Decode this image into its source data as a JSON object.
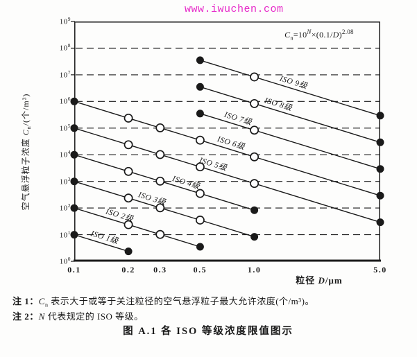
{
  "watermark": {
    "text": "www.iwuchen.com",
    "color": "#e628c8"
  },
  "colors": {
    "ink": "#1a1a1a",
    "paper": "#fdfdfc",
    "open_marker_fill": "#ffffff"
  },
  "caption": "图 A.1  各 ISO 等级浓度限值图示",
  "notes": {
    "note1": {
      "prefix": "注 1：",
      "c": "C",
      "c_sub": "n",
      "text": " 表示大于或等于关注粒径的空气悬浮粒子最大允许浓度(个/m³)。"
    },
    "note2": {
      "prefix": "注 2：",
      "n": "N",
      "text": " 代表规定的 ISO 等级。"
    }
  },
  "chart_data": {
    "type": "line",
    "title": "",
    "x_scale": "log",
    "y_scale": "log",
    "xlim": [
      0.1,
      5.0
    ],
    "ylim": [
      1,
      1000000000
    ],
    "grid": "horizontal dashed lines at each decade",
    "legend_position": "labels along lines",
    "x_ticks": [
      "0.1",
      "0.2",
      "0.3",
      "0.5",
      "1.0",
      "5.0"
    ],
    "y_tick_exponents": [
      0,
      1,
      2,
      3,
      4,
      5,
      6,
      7,
      8,
      9
    ],
    "y_tick_base": "10",
    "xlabel": "粒径 D/μm",
    "ylabel": "空气悬浮粒子浓度 Cn/(个/m³)",
    "xlabel_parts": {
      "prefix": "粒径 ",
      "d": "D",
      "suffix": "/μm"
    },
    "ylabel_parts": {
      "prefix": "空气悬浮粒子浓度 ",
      "c": "C",
      "c_sub": "n",
      "suffix": "/(个/m³)"
    },
    "annotation": {
      "c": "C",
      "c_sub": "n",
      "mid1": "=10",
      "n_sup": "N",
      "mid2": "×(0.1/",
      "d": "D",
      "mid3": ")",
      "exp_sup": "2.08"
    },
    "series": [
      {
        "name": "ISO 1级",
        "label_x": 0.146,
        "points": [
          {
            "x": 0.1,
            "y": 10,
            "marker": "filled"
          },
          {
            "x": 0.2,
            "y": 2.37,
            "marker": "filled"
          }
        ]
      },
      {
        "name": "ISO 2级",
        "label_x": 0.177,
        "points": [
          {
            "x": 0.1,
            "y": 100,
            "marker": "filled"
          },
          {
            "x": 0.2,
            "y": 23.7,
            "marker": "open"
          },
          {
            "x": 0.3,
            "y": 10.2,
            "marker": "open"
          },
          {
            "x": 0.5,
            "y": 3.52,
            "marker": "filled"
          }
        ]
      },
      {
        "name": "ISO 3级",
        "label_x": 0.268,
        "points": [
          {
            "x": 0.1,
            "y": 1000,
            "marker": "filled"
          },
          {
            "x": 0.2,
            "y": 237,
            "marker": "open"
          },
          {
            "x": 0.3,
            "y": 102,
            "marker": "open"
          },
          {
            "x": 0.5,
            "y": 35.2,
            "marker": "open"
          },
          {
            "x": 1.0,
            "y": 8.32,
            "marker": "filled"
          }
        ]
      },
      {
        "name": "ISO 4级",
        "label_x": 0.414,
        "points": [
          {
            "x": 0.1,
            "y": 10000,
            "marker": "filled"
          },
          {
            "x": 0.2,
            "y": 2370,
            "marker": "open"
          },
          {
            "x": 0.3,
            "y": 1020,
            "marker": "open"
          },
          {
            "x": 0.5,
            "y": 352,
            "marker": "open"
          },
          {
            "x": 1.0,
            "y": 83.2,
            "marker": "filled"
          }
        ]
      },
      {
        "name": "ISO 5级",
        "label_x": 0.585,
        "points": [
          {
            "x": 0.1,
            "y": 100000,
            "marker": "filled"
          },
          {
            "x": 0.2,
            "y": 23700,
            "marker": "open"
          },
          {
            "x": 0.3,
            "y": 10200,
            "marker": "open"
          },
          {
            "x": 0.5,
            "y": 3520,
            "marker": "open"
          },
          {
            "x": 1.0,
            "y": 832,
            "marker": "open"
          },
          {
            "x": 5.0,
            "y": 29.3,
            "marker": "filled"
          }
        ]
      },
      {
        "name": "ISO 6级",
        "label_x": 0.736,
        "points": [
          {
            "x": 0.1,
            "y": 1000000,
            "marker": "filled"
          },
          {
            "x": 0.2,
            "y": 237000,
            "marker": "open"
          },
          {
            "x": 0.3,
            "y": 102000,
            "marker": "open"
          },
          {
            "x": 0.5,
            "y": 35200,
            "marker": "open"
          },
          {
            "x": 1.0,
            "y": 8320,
            "marker": "open"
          },
          {
            "x": 5.0,
            "y": 293,
            "marker": "filled"
          }
        ]
      },
      {
        "name": "ISO 7级",
        "label_x": 0.805,
        "points": [
          {
            "x": 0.5,
            "y": 352000,
            "marker": "filled"
          },
          {
            "x": 1.0,
            "y": 83200,
            "marker": "open"
          },
          {
            "x": 5.0,
            "y": 2930,
            "marker": "filled"
          }
        ]
      },
      {
        "name": "ISO 8级",
        "label_x": 1.346,
        "points": [
          {
            "x": 0.5,
            "y": 3520000,
            "marker": "filled"
          },
          {
            "x": 1.0,
            "y": 832000,
            "marker": "open"
          },
          {
            "x": 5.0,
            "y": 29300,
            "marker": "filled"
          }
        ]
      },
      {
        "name": "ISO 9级",
        "label_x": 1.637,
        "points": [
          {
            "x": 0.5,
            "y": 35200000,
            "marker": "filled"
          },
          {
            "x": 1.0,
            "y": 8320000,
            "marker": "open"
          },
          {
            "x": 5.0,
            "y": 293000,
            "marker": "filled"
          }
        ]
      }
    ]
  }
}
